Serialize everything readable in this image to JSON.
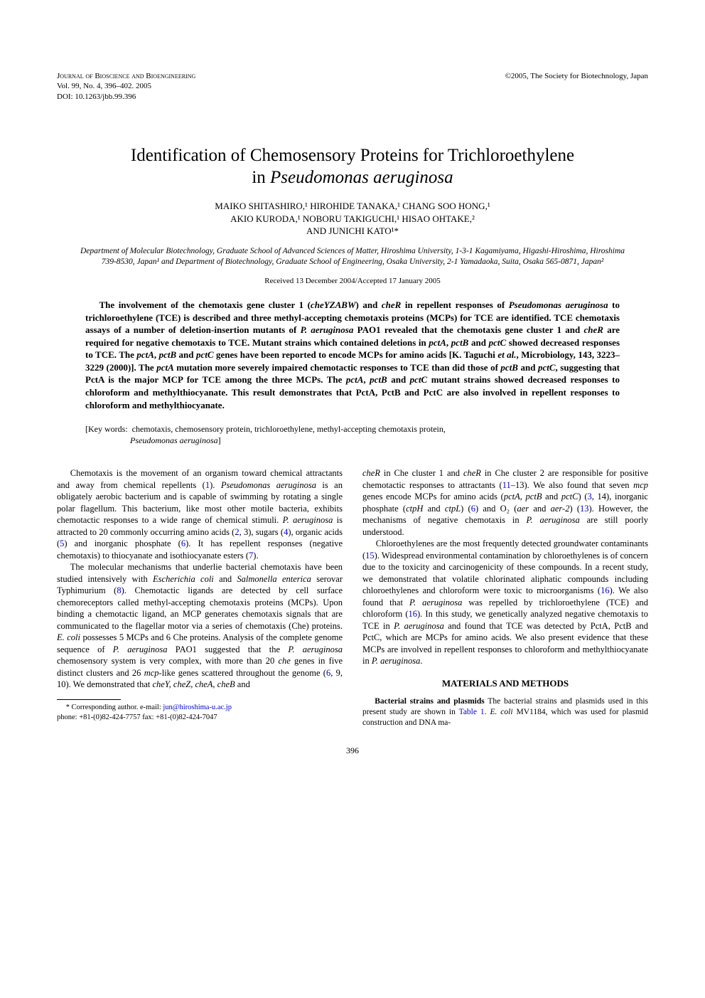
{
  "header": {
    "journal": "Journal of Bioscience and Bioengineering",
    "volume": "Vol. 99, No. 4, 396–402. 2005",
    "doi": "DOI: 10.1263/jbb.99.396",
    "copyright": "©2005, The Society for Biotechnology, Japan"
  },
  "title": {
    "line1": "Identification of Chemosensory Proteins for Trichloroethylene",
    "line2_prefix": "in ",
    "line2_italic": "Pseudomonas aeruginosa"
  },
  "authors": {
    "line1": "MAIKO SHITASHIRO,¹ HIROHIDE TANAKA,¹ CHANG SOO HONG,¹",
    "line2": "AKIO KURODA,¹ NOBORU TAKIGUCHI,¹ HISAO OHTAKE,²",
    "line3": "AND JUNICHI KATO¹*"
  },
  "affiliations": "Department of Molecular Biotechnology, Graduate School of Advanced Sciences of Matter, Hiroshima University, 1-3-1 Kagamiyama, Higashi-Hiroshima, Hiroshima 739-8530, Japan¹ and Department of Biotechnology, Graduate School of Engineering, Osaka University, 2-1 Yamadaoka, Suita, Osaka 565-0871, Japan²",
  "received": "Received 13 December 2004/Accepted 17 January 2005",
  "abstract": {
    "p1a": "The involvement of the chemotaxis gene cluster 1 (",
    "p1b": "cheYZABW",
    "p1c": ") and ",
    "p1d": "cheR",
    "p1e": " in repellent responses of ",
    "p1f": "Pseudomonas aeruginosa",
    "p1g": " to trichloroethylene (TCE) is described and three methyl-accepting chemotaxis proteins (MCPs) for TCE are identified. TCE chemotaxis assays of a number of deletion-insertion mutants of ",
    "p1h": "P. aeruginosa",
    "p1i": " PAO1 revealed that the chemotaxis gene cluster 1 and ",
    "p1j": "cheR",
    "p1k": " are required for negative chemotaxis to TCE. Mutant strains which contained deletions in ",
    "p1l": "pctA",
    "p1m": ", ",
    "p1n": "pctB",
    "p1o": " and ",
    "p1p": "pctC",
    "p1q": " showed decreased responses to TCE. The ",
    "p1r": "pctA",
    "p1s": ", ",
    "p1t": "pctB",
    "p1u": " and ",
    "p1v": "pctC",
    "p1w": " genes have been reported to encode MCPs for amino acids [K. Taguchi ",
    "p1x": "et al.",
    "p1y": ", Microbiology, 143, 3223–3229 (2000)]. The ",
    "p1z": "pctA",
    "p1aa": " mutation more severely impaired chemotactic responses to TCE than did those of ",
    "p1ab": "pctB",
    "p1ac": " and ",
    "p1ad": "pctC",
    "p1ae": ", suggesting that PctA is the major MCP for TCE among the three MCPs. The ",
    "p1af": "pctA",
    "p1ag": ", ",
    "p1ah": "pctB",
    "p1ai": " and ",
    "p1aj": "pctC",
    "p1ak": " mutant strains showed decreased responses to chloroform and methylthiocyanate. This result demonstrates that PctA, PctB and PctC are also involved in repellent responses to chloroform and methylthiocyanate."
  },
  "keywords": {
    "label": "[Key words:",
    "content1": "chemotaxis, chemosensory protein, trichloroethylene, methyl-accepting chemotaxis protein,",
    "content2_italic": "Pseudomonas aeruginosa",
    "close": "]"
  },
  "body": {
    "col1": {
      "p1": {
        "t1": "Chemotaxis is the movement of an organism toward chemical attractants and away from chemical repellents (",
        "r1": "1",
        "t2": "). ",
        "i1": "Pseudomonas aeruginosa",
        "t3": " is an obligately aerobic bacterium and is capable of swimming by rotating a single polar flagellum. This bacterium, like most other motile bacteria, exhibits chemotactic responses to a wide range of chemical stimuli. ",
        "i2": "P. aeruginosa",
        "t4": " is attracted to 20 commonly occurring amino acids (",
        "r2": "2",
        "t5": ", 3), sugars (",
        "r3": "4",
        "t6": "), organic acids (",
        "r4": "5",
        "t7": ") and inorganic phosphate (",
        "r5": "6",
        "t8": "). It has repellent responses (negative chemotaxis) to thiocyanate and isothiocyanate esters (",
        "r6": "7",
        "t9": ")."
      },
      "p2": {
        "t1": "The molecular mechanisms that underlie bacterial chemotaxis have been studied intensively with ",
        "i1": "Escherichia coli",
        "t2": " and ",
        "i2": "Salmonella enterica",
        "t3": " serovar Typhimurium (",
        "r1": "8",
        "t4": "). Chemotactic ligands are detected by cell surface chemoreceptors called methyl-accepting chemotaxis proteins (MCPs). Upon binding a chemotactic ligand, an MCP generates chemotaxis signals that are communicated to the flagellar motor via a series of chemotaxis (Che) proteins. ",
        "i3": "E. coli",
        "t5": " possesses 5 MCPs and 6 Che proteins. Analysis of the complete genome sequence of ",
        "i4": "P. aeruginosa",
        "t6": " PAO1 suggested that the ",
        "i5": "P. aeruginosa",
        "t7": " chemosensory system is very complex, with more than 20 ",
        "i6": "che",
        "t8": " genes in five distinct clusters and 26 ",
        "i7": "mcp",
        "t9": "-like genes scattered throughout the genome (",
        "r2": "6",
        "t10": ", 9, 10). We demonstrated that ",
        "i8": "cheY, cheZ, cheA, cheB",
        "t11": " and"
      }
    },
    "col2": {
      "p1": {
        "i1": "cheR",
        "t1": " in Che cluster 1 and ",
        "i2": "cheR",
        "t2": " in Che cluster 2 are responsible for positive chemotactic responses to attractants (",
        "r1": "11",
        "t3": "–13). We also found that seven ",
        "i3": "mcp",
        "t4": " genes encode MCPs for amino acids (",
        "i4": "pctA, pctB",
        "t5": " and ",
        "i5": "pctC",
        "t6": ") (",
        "r2": "3",
        "t7": ", 14), inorganic phosphate (",
        "i6": "ctpH",
        "t8": " and ",
        "i7": "ctpL",
        "t9": ") (",
        "r3": "6",
        "t10": ") and O₂ (",
        "i8": "aer",
        "t11": " and ",
        "i9": "aer-2",
        "t12": ") (",
        "r4": "13",
        "t13": "). However, the mechanisms of negative chemotaxis in ",
        "i10": "P. aeruginosa",
        "t14": " are still poorly understood."
      },
      "p2": {
        "t1": "Chloroethylenes are the most frequently detected groundwater contaminants (",
        "r1": "15",
        "t2": "). Widespread environmental contamination by chloroethylenes is of concern due to the toxicity and carcinogenicity of these compounds. In a recent study, we demonstrated that volatile chlorinated aliphatic compounds including chloroethylenes and chloroform were toxic to microorganisms (",
        "r2": "16",
        "t3": "). We also found that ",
        "i1": "P. aeruginosa",
        "t4": " was repelled by trichloroethylene (TCE) and chloroform (",
        "r3": "16",
        "t5": "). In this study, we genetically analyzed negative chemotaxis to TCE in ",
        "i2": "P. aeruginosa",
        "t6": " and found that TCE was detected by PctA, PctB and PctC, which are MCPs for amino acids. We also present evidence that these MCPs are involved in repellent responses to chloroform and methylthiocyanate in ",
        "i3": "P. aeruginosa",
        "t7": "."
      },
      "section_head": "MATERIALS AND METHODS",
      "p3": {
        "runin": "Bacterial strains and plasmids",
        "t1": "     The bacterial strains and plasmids used in this present study are shown in ",
        "r1": "Table 1",
        "t2": ". ",
        "i1": "E. coli",
        "t3": " MV1184, which was used for plasmid construction and DNA ma-"
      }
    }
  },
  "footnote": {
    "text1": "* Corresponding author. e-mail: ",
    "email": "jun@hiroshima-u.ac.jp",
    "text2": "phone: +81-(0)82-424-7757  fax: +81-(0)82-424-7047"
  },
  "page_num": "396"
}
